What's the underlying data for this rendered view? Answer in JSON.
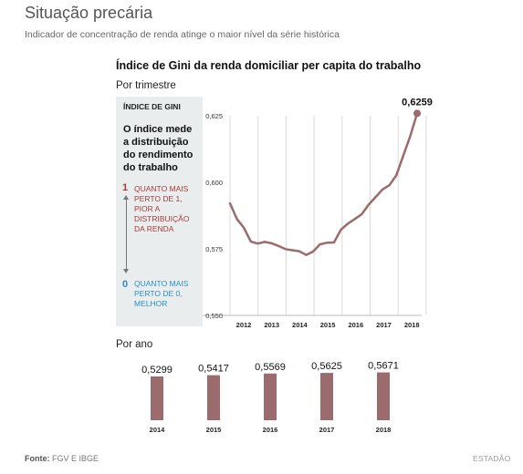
{
  "header": {
    "title": "Situação precária",
    "subtitle": "Indicador de concentração de renda atinge o maior nível da série histórica"
  },
  "chart_title": "Índice de Gini da renda domiciliar per capita do trabalho",
  "quarterly_label": "Por trimestre",
  "annual_label": "Por ano",
  "legend": {
    "heading": "ÍNDICE DE GINI",
    "description": "O índice mede a distribuição do rendimento do trabalho",
    "high_value": "1",
    "high_text": "QUANTO MAIS PERTO DE 1, PIOR A DISTRIBUIÇÃO DA RENDA",
    "low_value": "0",
    "low_text": "QUANTO MAIS PERTO DE 0, MELHOR"
  },
  "footer": {
    "source_label": "Fonte:",
    "source_value": "FGV E IBGE",
    "credit": "ESTADÃO"
  },
  "colors": {
    "series": "#9b6b6e",
    "high": "#a63a3a",
    "low": "#2a8fc4",
    "legend_bg": "#e9edee"
  },
  "chart_data": [
    {
      "type": "line",
      "title": "Por trimestre",
      "x_tick_labels": [
        "2012",
        "2013",
        "2014",
        "2015",
        "2016",
        "2017",
        "2018"
      ],
      "y_tick_labels": [
        "0,550",
        "0,575",
        "0,600",
        "0,625"
      ],
      "ylim": [
        0.55,
        0.625
      ],
      "grid": "vertical",
      "annotation": "0,6259",
      "series": [
        {
          "values": [
            0.5921,
            0.5862,
            0.5829,
            0.5777,
            0.577,
            0.5776,
            0.5771,
            0.5761,
            0.5749,
            0.5745,
            0.5741,
            0.5727,
            0.574,
            0.5767,
            0.5773,
            0.5774,
            0.5822,
            0.5845,
            0.5862,
            0.588,
            0.5916,
            0.5944,
            0.5973,
            0.5989,
            0.6026,
            0.61,
            0.6173,
            0.6259
          ]
        }
      ]
    },
    {
      "type": "bar",
      "title": "Por ano",
      "categories": [
        "2014",
        "2015",
        "2016",
        "2017",
        "2018"
      ],
      "values": [
        0.5299,
        0.5417,
        0.5569,
        0.5625,
        0.5671
      ],
      "value_labels": [
        "0,5299",
        "0,5417",
        "0,5569",
        "0,5625",
        "0,5671"
      ]
    }
  ]
}
